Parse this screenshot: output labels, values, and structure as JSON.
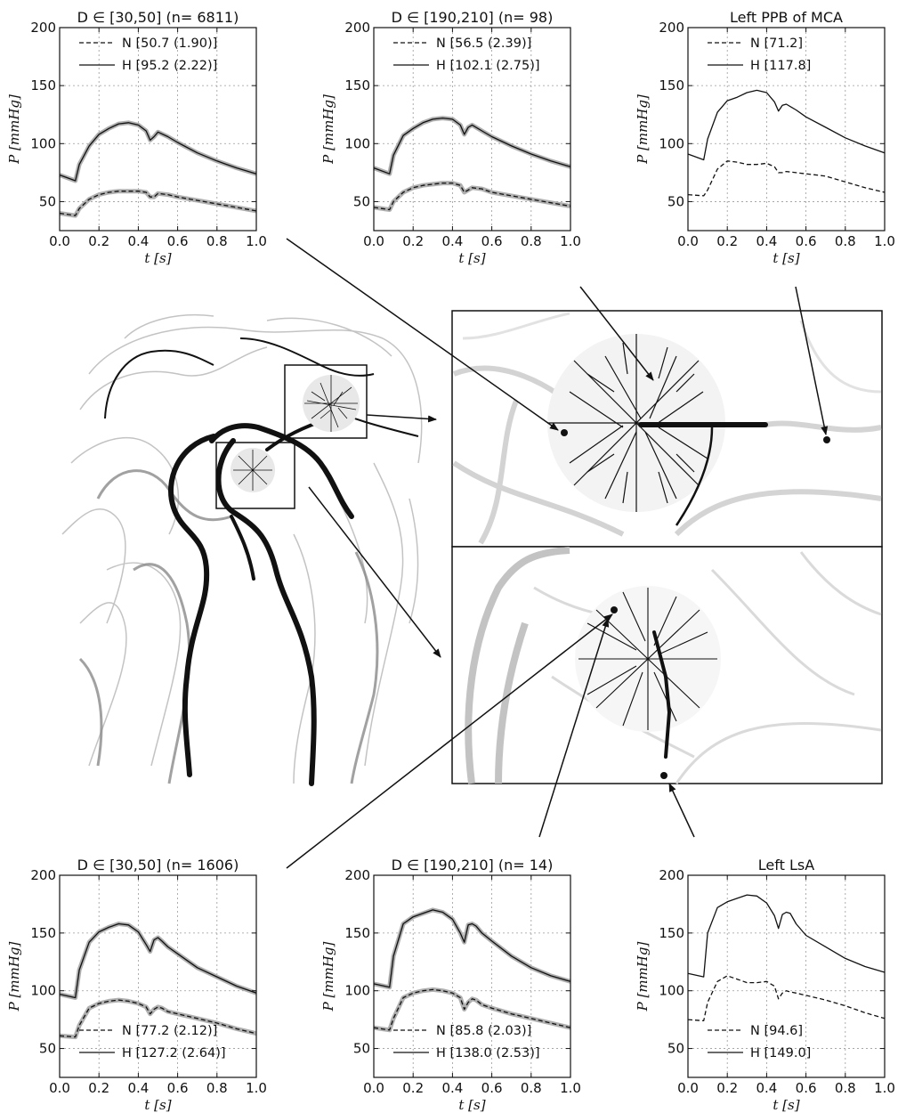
{
  "chart_data": [
    {
      "type": "line",
      "title": "D ∈ [30,50] (n= 6811)",
      "xlabel": "t [s]",
      "ylabel": "P [mmHg]",
      "xlim": [
        0,
        1
      ],
      "ylim": [
        25,
        200
      ],
      "xticks": [
        "0.0",
        "0.2",
        "0.4",
        "0.6",
        "0.8",
        "1.0"
      ],
      "yticks": [
        "50",
        "100",
        "150",
        "200"
      ],
      "grid": true,
      "legend_position": "upper-center",
      "series": [
        {
          "name": "N [50.7 (1.90)]",
          "style": "dashed",
          "band": true,
          "x": [
            0,
            0.08,
            0.1,
            0.15,
            0.2,
            0.25,
            0.3,
            0.35,
            0.4,
            0.44,
            0.46,
            0.48,
            0.5,
            0.55,
            0.6,
            0.7,
            0.8,
            0.9,
            1.0
          ],
          "y": [
            40,
            38,
            44,
            52,
            56,
            58,
            59,
            59,
            59,
            58,
            54,
            54,
            57,
            56,
            54,
            51,
            48,
            45,
            42
          ]
        },
        {
          "name": "H [95.2 (2.22)]",
          "style": "solid",
          "band": true,
          "x": [
            0,
            0.08,
            0.1,
            0.15,
            0.2,
            0.25,
            0.3,
            0.35,
            0.4,
            0.44,
            0.46,
            0.48,
            0.5,
            0.55,
            0.6,
            0.7,
            0.8,
            0.9,
            1.0
          ],
          "y": [
            73,
            68,
            82,
            98,
            108,
            113,
            117,
            118,
            116,
            111,
            103,
            106,
            110,
            106,
            101,
            92,
            85,
            79,
            74
          ]
        }
      ]
    },
    {
      "type": "line",
      "title": "D ∈ [190,210] (n= 98)",
      "xlabel": "t [s]",
      "ylabel": "P [mmHg]",
      "xlim": [
        0,
        1
      ],
      "ylim": [
        25,
        200
      ],
      "xticks": [
        "0.0",
        "0.2",
        "0.4",
        "0.6",
        "0.8",
        "1.0"
      ],
      "yticks": [
        "50",
        "100",
        "150",
        "200"
      ],
      "grid": true,
      "legend_position": "upper-center",
      "series": [
        {
          "name": "N [56.5 (2.39)]",
          "style": "dashed",
          "band": true,
          "x": [
            0,
            0.08,
            0.1,
            0.15,
            0.2,
            0.25,
            0.3,
            0.35,
            0.4,
            0.44,
            0.46,
            0.48,
            0.5,
            0.55,
            0.6,
            0.7,
            0.8,
            0.9,
            1.0
          ],
          "y": [
            45,
            43,
            50,
            58,
            62,
            64,
            65,
            66,
            66,
            64,
            58,
            60,
            62,
            61,
            58,
            55,
            52,
            49,
            46
          ]
        },
        {
          "name": "H [102.1 (2.75)]",
          "style": "solid",
          "band": true,
          "x": [
            0,
            0.08,
            0.1,
            0.15,
            0.2,
            0.25,
            0.3,
            0.35,
            0.4,
            0.44,
            0.46,
            0.48,
            0.5,
            0.55,
            0.6,
            0.7,
            0.8,
            0.9,
            1.0
          ],
          "y": [
            79,
            74,
            90,
            107,
            113,
            118,
            121,
            122,
            121,
            116,
            108,
            114,
            116,
            111,
            106,
            98,
            91,
            85,
            80
          ]
        }
      ]
    },
    {
      "type": "line",
      "title": "Left PPB of MCA",
      "xlabel": "t [s]",
      "ylabel": "P [mmHg]",
      "xlim": [
        0,
        1
      ],
      "ylim": [
        25,
        200
      ],
      "xticks": [
        "0.0",
        "0.2",
        "0.4",
        "0.6",
        "0.8",
        "1.0"
      ],
      "yticks": [
        "50",
        "100",
        "150",
        "200"
      ],
      "grid": true,
      "legend_position": "upper-center",
      "series": [
        {
          "name": "N  [71.2]",
          "style": "dashed",
          "band": false,
          "x": [
            0,
            0.08,
            0.1,
            0.15,
            0.2,
            0.25,
            0.3,
            0.35,
            0.4,
            0.44,
            0.46,
            0.48,
            0.5,
            0.55,
            0.6,
            0.7,
            0.8,
            0.9,
            1.0
          ],
          "y": [
            56,
            55,
            60,
            78,
            85,
            84,
            82,
            82,
            83,
            80,
            75,
            75,
            76,
            75,
            74,
            72,
            67,
            62,
            58
          ]
        },
        {
          "name": "H  [117.8]",
          "style": "solid",
          "band": false,
          "x": [
            0,
            0.08,
            0.1,
            0.15,
            0.2,
            0.25,
            0.3,
            0.35,
            0.4,
            0.44,
            0.46,
            0.48,
            0.5,
            0.55,
            0.6,
            0.7,
            0.8,
            0.9,
            1.0
          ],
          "y": [
            91,
            86,
            104,
            127,
            137,
            140,
            144,
            146,
            144,
            136,
            128,
            133,
            134,
            129,
            123,
            114,
            105,
            98,
            92
          ]
        }
      ]
    },
    {
      "type": "line",
      "title": "D ∈ [30,50] (n= 1606)",
      "xlabel": "t [s]",
      "ylabel": "P [mmHg]",
      "xlim": [
        0,
        1
      ],
      "ylim": [
        25,
        200
      ],
      "xticks": [
        "0.0",
        "0.2",
        "0.4",
        "0.6",
        "0.8",
        "1.0"
      ],
      "yticks": [
        "50",
        "100",
        "150",
        "200"
      ],
      "grid": true,
      "legend_position": "lower-center",
      "series": [
        {
          "name": "N [77.2 (2.12)]",
          "style": "dashed",
          "band": true,
          "x": [
            0,
            0.08,
            0.1,
            0.15,
            0.2,
            0.25,
            0.3,
            0.35,
            0.4,
            0.44,
            0.46,
            0.48,
            0.5,
            0.52,
            0.55,
            0.6,
            0.7,
            0.8,
            0.9,
            1.0
          ],
          "y": [
            61,
            60,
            70,
            85,
            89,
            91,
            92,
            91,
            89,
            86,
            80,
            84,
            86,
            85,
            82,
            80,
            76,
            72,
            67,
            63
          ]
        },
        {
          "name": "H [127.2 (2.64)]",
          "style": "solid",
          "band": true,
          "x": [
            0,
            0.08,
            0.1,
            0.15,
            0.2,
            0.25,
            0.3,
            0.35,
            0.4,
            0.44,
            0.46,
            0.48,
            0.5,
            0.52,
            0.55,
            0.6,
            0.7,
            0.8,
            0.9,
            1.0
          ],
          "y": [
            97,
            94,
            118,
            142,
            151,
            155,
            158,
            157,
            151,
            140,
            134,
            144,
            146,
            143,
            138,
            132,
            120,
            112,
            104,
            98
          ]
        }
      ]
    },
    {
      "type": "line",
      "title": "D ∈ [190,210] (n= 14)",
      "xlabel": "t [s]",
      "ylabel": "P [mmHg]",
      "xlim": [
        0,
        1
      ],
      "ylim": [
        25,
        200
      ],
      "xticks": [
        "0.0",
        "0.2",
        "0.4",
        "0.6",
        "0.8",
        "1.0"
      ],
      "yticks": [
        "50",
        "100",
        "150",
        "200"
      ],
      "grid": true,
      "legend_position": "lower-center",
      "series": [
        {
          "name": "N [85.8 (2.03)]",
          "style": "dashed",
          "band": true,
          "x": [
            0,
            0.08,
            0.1,
            0.15,
            0.2,
            0.25,
            0.3,
            0.35,
            0.4,
            0.44,
            0.46,
            0.48,
            0.5,
            0.52,
            0.55,
            0.6,
            0.7,
            0.8,
            0.9,
            1.0
          ],
          "y": [
            68,
            66,
            76,
            94,
            98,
            100,
            101,
            100,
            98,
            94,
            84,
            90,
            93,
            92,
            88,
            85,
            80,
            76,
            72,
            68
          ]
        },
        {
          "name": "H [138.0 (2.53)]",
          "style": "solid",
          "band": true,
          "x": [
            0,
            0.08,
            0.1,
            0.15,
            0.2,
            0.25,
            0.3,
            0.35,
            0.4,
            0.44,
            0.46,
            0.48,
            0.5,
            0.52,
            0.55,
            0.6,
            0.7,
            0.8,
            0.9,
            1.0
          ],
          "y": [
            106,
            103,
            130,
            158,
            164,
            167,
            170,
            168,
            162,
            150,
            142,
            157,
            158,
            156,
            150,
            143,
            130,
            120,
            113,
            108
          ]
        }
      ]
    },
    {
      "type": "line",
      "title": "Left LsA",
      "xlabel": "t [s]",
      "ylabel": "P [mmHg]",
      "xlim": [
        0,
        1
      ],
      "ylim": [
        25,
        200
      ],
      "xticks": [
        "0.0",
        "0.2",
        "0.4",
        "0.6",
        "0.8",
        "1.0"
      ],
      "yticks": [
        "50",
        "100",
        "150",
        "200"
      ],
      "grid": true,
      "legend_position": "lower-center",
      "series": [
        {
          "name": "N  [94.6]",
          "style": "dashed",
          "band": false,
          "x": [
            0,
            0.08,
            0.1,
            0.15,
            0.2,
            0.25,
            0.3,
            0.35,
            0.4,
            0.44,
            0.46,
            0.48,
            0.5,
            0.52,
            0.55,
            0.6,
            0.7,
            0.8,
            0.9,
            1.0
          ],
          "y": [
            75,
            74,
            90,
            108,
            113,
            110,
            107,
            107,
            108,
            104,
            93,
            98,
            100,
            99,
            98,
            96,
            92,
            87,
            81,
            76
          ]
        },
        {
          "name": "H  [149.0]",
          "style": "solid",
          "band": false,
          "x": [
            0,
            0.08,
            0.1,
            0.15,
            0.2,
            0.25,
            0.3,
            0.35,
            0.4,
            0.44,
            0.46,
            0.48,
            0.5,
            0.52,
            0.55,
            0.6,
            0.7,
            0.8,
            0.9,
            1.0
          ],
          "y": [
            115,
            112,
            150,
            172,
            177,
            180,
            183,
            182,
            176,
            165,
            154,
            166,
            168,
            167,
            158,
            148,
            138,
            128,
            121,
            116
          ]
        }
      ]
    }
  ]
}
